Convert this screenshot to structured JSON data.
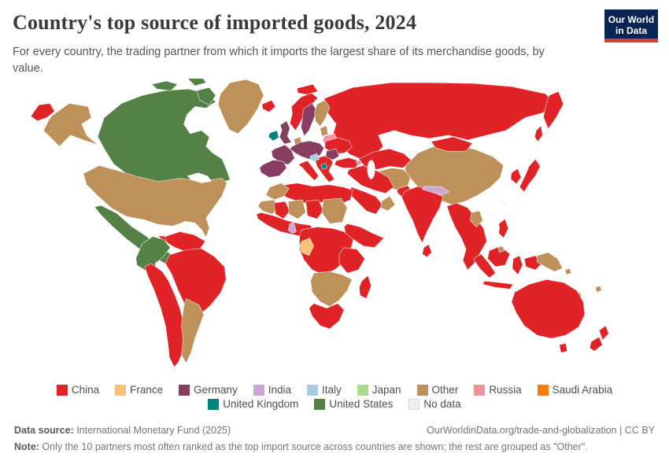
{
  "header": {
    "title": "Country's top source of imported goods, 2024",
    "subtitle": "For every country, the trading partner from which it imports the largest share of its merchandise goods, by value."
  },
  "logo": {
    "line1": "Our World",
    "line2": "in Data",
    "bg": "#0a2554",
    "bar": "#d93c42"
  },
  "legend": {
    "rows": [
      [
        "China",
        "France",
        "Germany",
        "India",
        "Italy",
        "Japan",
        "Other",
        "Russia",
        "Saudi Arabia"
      ],
      [
        "United Kingdom",
        "United States",
        "No data"
      ]
    ]
  },
  "palette": {
    "China": "#df2327",
    "France": "#f6c17b",
    "Germany": "#883e61",
    "India": "#c9a8d4",
    "Italy": "#a7cbe3",
    "Japan": "#a9db8c",
    "Other": "#bd9159",
    "Russia": "#f2929e",
    "Saudi Arabia": "#f57c0c",
    "United Kingdom": "#00847c",
    "United States": "#538146",
    "No data": "hatch"
  },
  "map": {
    "regions": {
      "chukotka": "China",
      "alaska": "Other",
      "canada": "United States",
      "arctic-island-1": "United States",
      "arctic-island-2": "United States",
      "baffin-island": "United States",
      "greenland": "Other",
      "usa": "Other",
      "mexico": "United States",
      "central-america": "United States",
      "cuba": "China",
      "hispaniola": "United States",
      "colombia-ecuador": "United States",
      "venezuela-guyanas": "China",
      "brazil": "China",
      "peru-chile": "China",
      "argentina": "Other",
      "iceland": "China",
      "ireland": "United Kingdom",
      "uk": "Germany",
      "norway": "China",
      "sweden": "Germany",
      "finland": "Other",
      "denmark": "Other",
      "baltics": "Other",
      "belarus": "Russia",
      "central-europe": "Germany",
      "france": "Germany",
      "iberia": "Germany",
      "italy": "China",
      "balkans-greece": "China",
      "slovenia-croatia": "Italy",
      "north-macedonia": "United Kingdom",
      "romania": "Germany",
      "ukraine": "China",
      "russia": "China",
      "kamchatka": "China",
      "sakhalin": "China",
      "svalbard": "China",
      "kazakhstan": "China",
      "central-asia": "Other",
      "armenia": "Russia",
      "turkey": "China",
      "iran-iraq": "China",
      "pakistan": "China",
      "saudi-arabia": "China",
      "oman": "Other",
      "morocco": "Other",
      "western-sahara": "No data",
      "north-africa": "China",
      "mauritania-senegal": "Other",
      "mali": "China",
      "niger": "Other",
      "chad": "China",
      "sudan": "Other",
      "west-africa-coast": "China",
      "benin": "India",
      "gabon": "France",
      "central-africa": "China",
      "horn-of-africa": "China",
      "east-africa": "China",
      "southern-africa": "Other",
      "south-africa": "China",
      "madagascar": "China",
      "china": "Other",
      "mongolia": "China",
      "korea": "China",
      "japan": "China",
      "taiwan": "No data",
      "india": "China",
      "nepal": "India",
      "sri-lanka": "China",
      "indochina": "China",
      "laos": "Other",
      "philippines": "China",
      "sumatra": "China",
      "borneo": "China",
      "brunei": "Other",
      "java": "China",
      "sulawesi": "China",
      "west-papua": "China",
      "papua-new-guinea": "Other",
      "solomon-islands": "Other",
      "fiji": "Other",
      "new-caledonia": "Other",
      "australia": "China",
      "tasmania": "China",
      "new-zealand-north": "China",
      "new-zealand-south": "China"
    }
  },
  "footer": {
    "source_label": "Data source:",
    "source_value": " International Monetary Fund (2025)",
    "link": "OurWorldinData.org/trade-and-globalization | CC BY",
    "note_label": "Note:",
    "note_value": " Only the 10 partners most often ranked as the top import source across countries are shown; the rest are grouped as \"Other\"."
  }
}
